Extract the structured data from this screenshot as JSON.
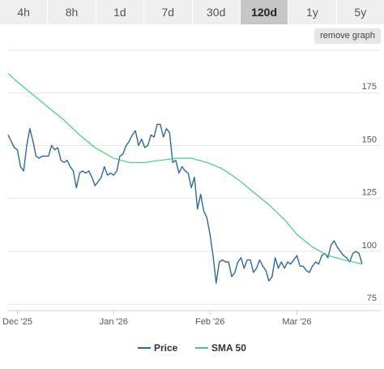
{
  "timeframes": [
    {
      "label": "4h",
      "active": false
    },
    {
      "label": "8h",
      "active": false
    },
    {
      "label": "1d",
      "active": false
    },
    {
      "label": "7d",
      "active": false
    },
    {
      "label": "30d",
      "active": false
    },
    {
      "label": "120d",
      "active": true
    },
    {
      "label": "1y",
      "active": false
    },
    {
      "label": "5y",
      "active": false
    }
  ],
  "remove_graph_label": "remove graph",
  "colors": {
    "price": "#2b6aa6",
    "sma": "#3ed17e",
    "grid": "#e6e6e6",
    "active_tab": "#c6c6c6"
  },
  "chart_data": {
    "type": "line",
    "x_start": "2025-11-28",
    "x_end": "2026-03-28",
    "xticks": [
      {
        "label": "Dec '25",
        "date": "2025-12-01"
      },
      {
        "label": "Jan '26",
        "date": "2026-01-01"
      },
      {
        "label": "Feb '26",
        "date": "2026-02-01"
      },
      {
        "label": "Mar '26",
        "date": "2026-03-01"
      }
    ],
    "yticks": [
      75,
      100,
      125,
      150,
      175
    ],
    "ylim": [
      72,
      195
    ],
    "grid": true,
    "legend_position": "bottom",
    "series": [
      {
        "name": "Price",
        "color": "#2b6aa6",
        "points": [
          [
            "2025-11-28",
            155
          ],
          [
            "2025-11-29",
            152
          ],
          [
            "2025-11-30",
            149
          ],
          [
            "2025-12-01",
            148
          ],
          [
            "2025-12-02",
            140
          ],
          [
            "2025-12-03",
            138
          ],
          [
            "2025-12-04",
            150
          ],
          [
            "2025-12-05",
            158
          ],
          [
            "2025-12-06",
            152
          ],
          [
            "2025-12-07",
            145
          ],
          [
            "2025-12-08",
            144
          ],
          [
            "2025-12-09",
            145
          ],
          [
            "2025-12-10",
            145
          ],
          [
            "2025-12-11",
            145
          ],
          [
            "2025-12-12",
            150
          ],
          [
            "2025-12-13",
            148
          ],
          [
            "2025-12-14",
            149
          ],
          [
            "2025-12-15",
            143
          ],
          [
            "2025-12-16",
            142
          ],
          [
            "2025-12-17",
            143
          ],
          [
            "2025-12-18",
            140
          ],
          [
            "2025-12-19",
            138
          ],
          [
            "2025-12-20",
            130
          ],
          [
            "2025-12-21",
            137
          ],
          [
            "2025-12-22",
            138
          ],
          [
            "2025-12-23",
            137
          ],
          [
            "2025-12-24",
            138
          ],
          [
            "2025-12-25",
            135
          ],
          [
            "2025-12-26",
            131
          ],
          [
            "2025-12-27",
            133
          ],
          [
            "2025-12-28",
            135
          ],
          [
            "2025-12-29",
            140
          ],
          [
            "2025-12-30",
            136
          ],
          [
            "2025-12-31",
            137
          ],
          [
            "2026-01-01",
            136
          ],
          [
            "2026-01-02",
            138
          ],
          [
            "2026-01-03",
            145
          ],
          [
            "2026-01-04",
            146
          ],
          [
            "2026-01-05",
            150
          ],
          [
            "2026-01-06",
            152
          ],
          [
            "2026-01-07",
            155
          ],
          [
            "2026-01-08",
            157
          ],
          [
            "2026-01-09",
            150
          ],
          [
            "2026-01-10",
            153
          ],
          [
            "2026-01-11",
            149
          ],
          [
            "2026-01-12",
            150
          ],
          [
            "2026-01-13",
            155
          ],
          [
            "2026-01-14",
            154
          ],
          [
            "2026-01-15",
            160
          ],
          [
            "2026-01-16",
            160
          ],
          [
            "2026-01-17",
            154
          ],
          [
            "2026-01-18",
            158
          ],
          [
            "2026-01-19",
            156
          ],
          [
            "2026-01-20",
            142
          ],
          [
            "2026-01-21",
            143
          ],
          [
            "2026-01-22",
            137
          ],
          [
            "2026-01-23",
            140
          ],
          [
            "2026-01-24",
            138
          ],
          [
            "2026-01-25",
            137
          ],
          [
            "2026-01-26",
            130
          ],
          [
            "2026-01-27",
            135
          ],
          [
            "2026-01-28",
            120
          ],
          [
            "2026-01-29",
            127
          ],
          [
            "2026-01-30",
            119
          ],
          [
            "2026-01-31",
            116
          ],
          [
            "2026-02-01",
            108
          ],
          [
            "2026-02-02",
            98
          ],
          [
            "2026-02-03",
            85
          ],
          [
            "2026-02-04",
            95
          ],
          [
            "2026-02-05",
            96
          ],
          [
            "2026-02-06",
            95
          ],
          [
            "2026-02-07",
            95
          ],
          [
            "2026-02-08",
            88
          ],
          [
            "2026-02-09",
            90
          ],
          [
            "2026-02-10",
            95
          ],
          [
            "2026-02-11",
            97
          ],
          [
            "2026-02-12",
            92
          ],
          [
            "2026-02-13",
            96
          ],
          [
            "2026-02-14",
            96
          ],
          [
            "2026-02-15",
            90
          ],
          [
            "2026-02-16",
            92
          ],
          [
            "2026-02-17",
            96
          ],
          [
            "2026-02-18",
            93
          ],
          [
            "2026-02-19",
            91
          ],
          [
            "2026-02-20",
            86
          ],
          [
            "2026-02-21",
            88
          ],
          [
            "2026-02-22",
            97
          ],
          [
            "2026-02-23",
            92
          ],
          [
            "2026-02-24",
            95
          ],
          [
            "2026-02-25",
            92
          ],
          [
            "2026-02-26",
            95
          ],
          [
            "2026-02-27",
            94
          ],
          [
            "2026-02-28",
            96
          ],
          [
            "2026-03-01",
            98
          ],
          [
            "2026-03-02",
            93
          ],
          [
            "2026-03-03",
            93
          ],
          [
            "2026-03-04",
            91
          ],
          [
            "2026-03-05",
            90
          ],
          [
            "2026-03-06",
            93
          ],
          [
            "2026-03-07",
            95
          ],
          [
            "2026-03-08",
            94
          ],
          [
            "2026-03-09",
            98
          ],
          [
            "2026-03-10",
            99
          ],
          [
            "2026-03-11",
            97
          ],
          [
            "2026-03-12",
            103
          ],
          [
            "2026-03-13",
            105
          ],
          [
            "2026-03-14",
            102
          ],
          [
            "2026-03-15",
            100
          ],
          [
            "2026-03-16",
            98
          ],
          [
            "2026-03-17",
            97
          ],
          [
            "2026-03-18",
            95
          ],
          [
            "2026-03-19",
            99
          ],
          [
            "2026-03-20",
            100
          ],
          [
            "2026-03-21",
            99
          ],
          [
            "2026-03-22",
            94
          ]
        ]
      },
      {
        "name": "SMA 50",
        "color": "#3ed17e",
        "points": [
          [
            "2025-11-28",
            184
          ],
          [
            "2025-12-01",
            180
          ],
          [
            "2025-12-06",
            174
          ],
          [
            "2025-12-11",
            168
          ],
          [
            "2025-12-16",
            162
          ],
          [
            "2025-12-21",
            155
          ],
          [
            "2025-12-26",
            149
          ],
          [
            "2026-01-01",
            144
          ],
          [
            "2026-01-06",
            142
          ],
          [
            "2026-01-11",
            142
          ],
          [
            "2026-01-16",
            143
          ],
          [
            "2026-01-21",
            144
          ],
          [
            "2026-01-26",
            144
          ],
          [
            "2026-01-31",
            142
          ],
          [
            "2026-02-05",
            139
          ],
          [
            "2026-02-10",
            134
          ],
          [
            "2026-02-15",
            128
          ],
          [
            "2026-02-20",
            122
          ],
          [
            "2026-02-25",
            115
          ],
          [
            "2026-03-01",
            108
          ],
          [
            "2026-03-06",
            102
          ],
          [
            "2026-03-11",
            98
          ],
          [
            "2026-03-16",
            96
          ],
          [
            "2026-03-22",
            94
          ]
        ]
      }
    ]
  }
}
